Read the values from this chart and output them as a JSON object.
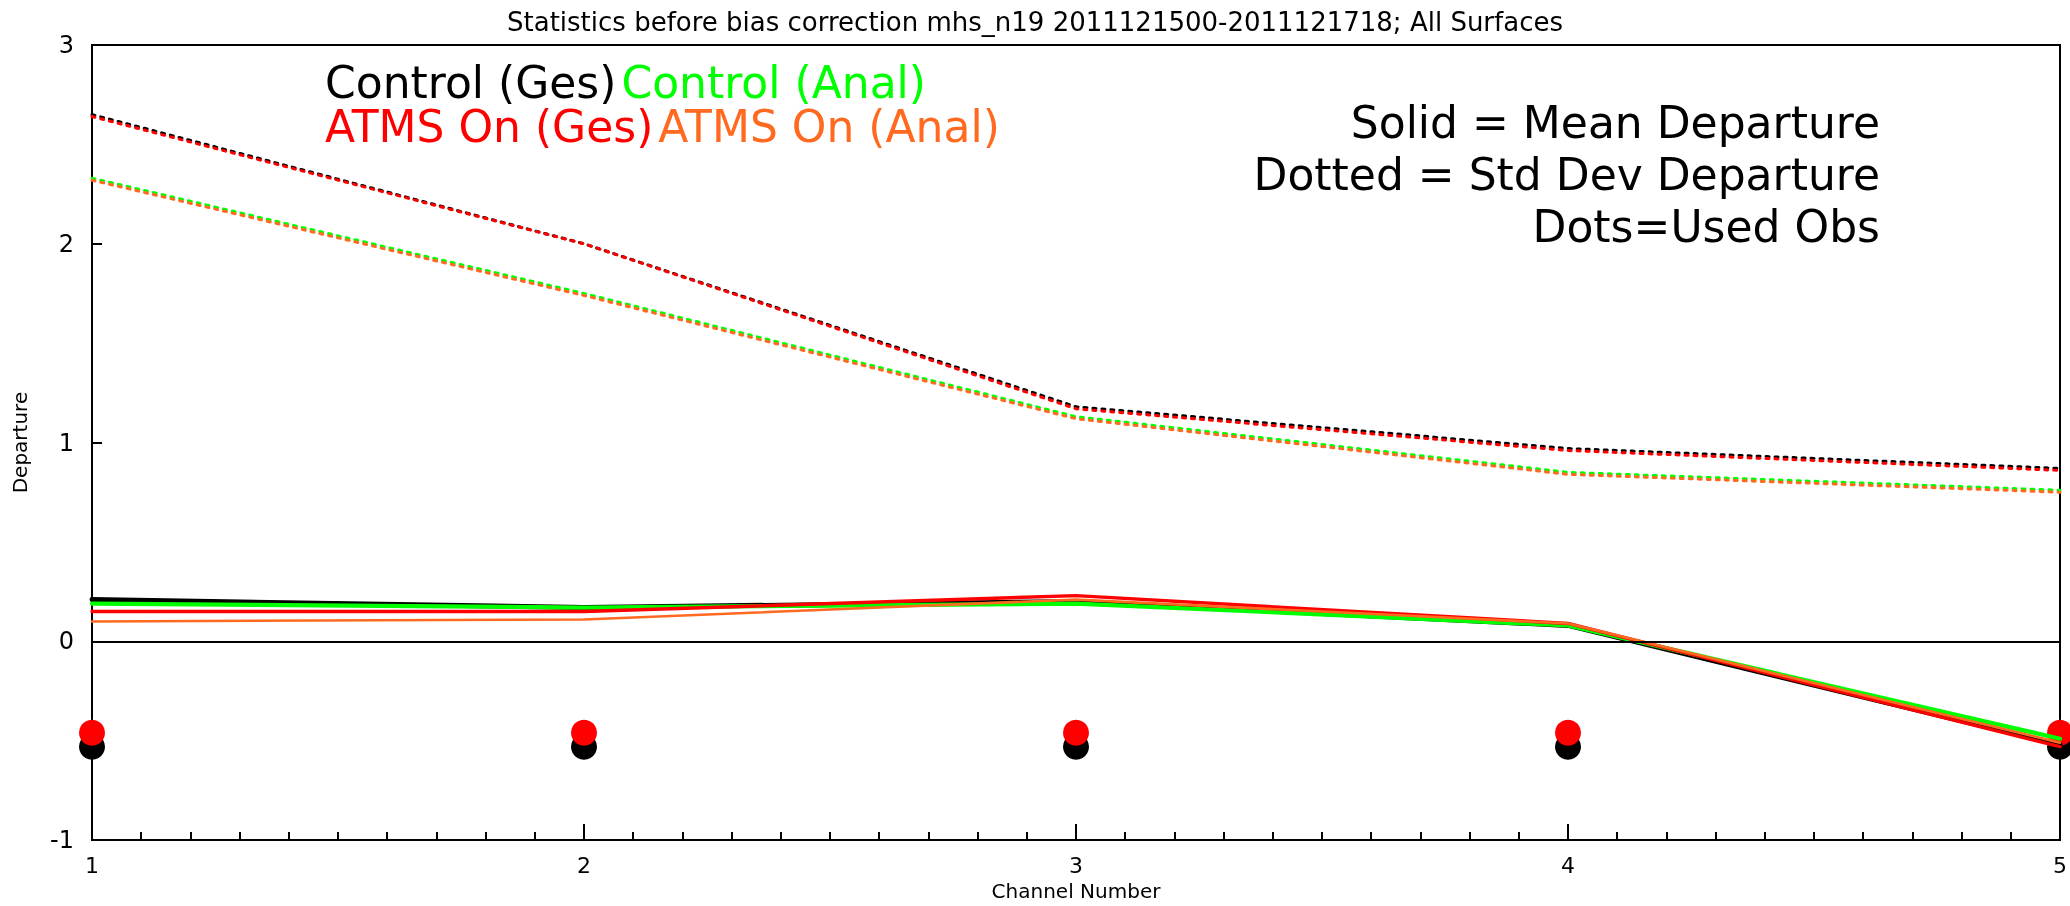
{
  "chart_data": {
    "type": "line",
    "title": "Statistics before bias correction mhs_n19 2011121500-2011121718; All Surfaces",
    "xlabel": "Channel Number",
    "ylabel": "Departure",
    "x": [
      1,
      2,
      3,
      4,
      5
    ],
    "xlim": [
      1,
      5
    ],
    "xticks": [
      1,
      2,
      3,
      4,
      5
    ],
    "ylim": [
      -1,
      3
    ],
    "yticks": [
      -1,
      0,
      1,
      2,
      3
    ],
    "grid": false,
    "legend": "top left",
    "marker": "none",
    "line_style": "solid",
    "annotations": [
      "Solid = Mean Departure",
      "Dotted = Std Dev Departure",
      "Dots=Used Obs"
    ],
    "ref_lines": [
      {
        "axis": "y",
        "value": 0,
        "color": "#000000"
      }
    ],
    "series": [
      {
        "name": "Control (Ges)",
        "color": "#000000",
        "values": [
          0.21,
          0.17,
          0.2,
          0.08,
          -0.52
        ]
      },
      {
        "name": "Control (Anal)",
        "color": "#00ff00",
        "values": [
          0.19,
          0.17,
          0.19,
          0.08,
          -0.49
        ]
      },
      {
        "name": "ATMS On (Ges)",
        "color": "#ff0000",
        "values": [
          0.15,
          0.15,
          0.23,
          0.09,
          -0.53
        ]
      },
      {
        "name": "ATMS On (Anal)",
        "color": "#ff6a20",
        "values": [
          0.1,
          0.11,
          0.21,
          0.09,
          -0.51
        ]
      },
      {
        "color": "#000000",
        "line_style": "dotted",
        "values": [
          2.65,
          2.0,
          1.18,
          0.97,
          0.87
        ]
      },
      {
        "color": "#ff0000",
        "line_style": "dotted",
        "values": [
          2.64,
          2.0,
          1.17,
          0.96,
          0.86
        ]
      },
      {
        "color": "#00ff00",
        "line_style": "dotted",
        "values": [
          2.33,
          1.75,
          1.13,
          0.85,
          0.76
        ]
      },
      {
        "color": "#ff6a20",
        "line_style": "dotted",
        "values": [
          2.32,
          1.74,
          1.12,
          0.84,
          0.75
        ]
      },
      {
        "type": "scatter",
        "marker": "circle",
        "color": "#000000",
        "values": [
          -0.53,
          -0.53,
          -0.53,
          -0.53,
          -0.53
        ]
      },
      {
        "type": "scatter",
        "marker": "circle",
        "color": "#ff0000",
        "values": [
          -0.46,
          -0.46,
          -0.46,
          -0.46,
          -0.46
        ]
      }
    ]
  }
}
